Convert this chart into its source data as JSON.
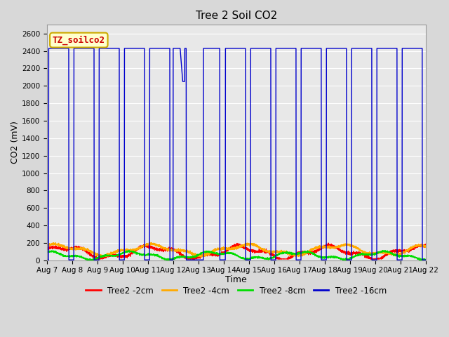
{
  "title": "Tree 2 Soil CO2",
  "xlabel": "Time",
  "ylabel": "CO2 (mV)",
  "ylim": [
    0,
    2700
  ],
  "yticks": [
    0,
    200,
    400,
    600,
    800,
    1000,
    1200,
    1400,
    1600,
    1800,
    2000,
    2200,
    2400,
    2600
  ],
  "fig_bg_color": "#d8d8d8",
  "plot_bg_color": "#e8e8e8",
  "series_colors": {
    "2cm": "#ff0000",
    "4cm": "#ffaa00",
    "8cm": "#00dd00",
    "16cm": "#0000cc"
  },
  "legend_colors": {
    "Tree2 -2cm": "#ff0000",
    "Tree2 -4cm": "#ffaa00",
    "Tree2 -8cm": "#00dd00",
    "Tree2 -16cm": "#0000cc"
  },
  "n_points": 5000,
  "annotation_text": "TZ_soilco2",
  "annotation_color": "#cc0000",
  "annotation_bg": "#ffffcc",
  "annotation_edge": "#ccaa00",
  "x_tick_labels": [
    "Aug 7",
    "Aug 8",
    "Aug 9",
    "Aug 10",
    "Aug 11",
    "Aug 12",
    "Aug 13",
    "Aug 14",
    "Aug 15",
    "Aug 16",
    "Aug 17",
    "Aug 18",
    "Aug 19",
    "Aug 20",
    "Aug 21",
    "Aug 22"
  ],
  "title_fontsize": 11,
  "axis_label_fontsize": 9,
  "tick_fontsize": 7.5,
  "legend_fontsize": 8.5
}
